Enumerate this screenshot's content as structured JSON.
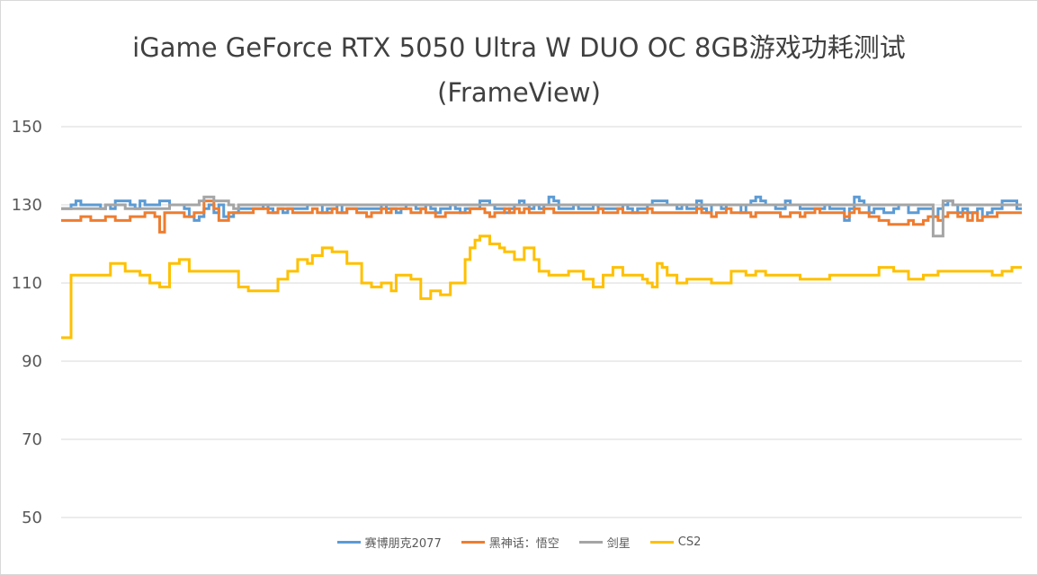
{
  "chart_data": {
    "type": "line",
    "title": "iGame GeForce RTX 5050 Ultra W DUO OC 8GB游戏功耗测试",
    "subtitle": "(FrameView)",
    "yticks": [
      50,
      70,
      90,
      110,
      130,
      150
    ],
    "ylim": [
      50,
      150
    ],
    "grid": true,
    "legend_position": "bottom",
    "series": [
      {
        "name": "赛博朋克2077",
        "color": "#5b9bd5",
        "values": [
          129,
          129,
          130,
          131,
          130,
          130,
          130,
          130,
          129,
          130,
          129,
          131,
          131,
          131,
          130,
          129,
          131,
          130,
          130,
          130,
          131,
          131,
          130,
          130,
          130,
          129,
          127,
          126,
          127,
          129,
          130,
          128,
          130,
          127,
          127,
          128,
          129,
          129,
          129,
          129,
          129,
          130,
          129,
          128,
          129,
          128,
          129,
          129,
          129,
          129,
          130,
          130,
          130,
          128,
          129,
          129,
          130,
          128,
          129,
          129,
          129,
          129,
          129,
          129,
          129,
          130,
          129,
          129,
          128,
          129,
          130,
          130,
          129,
          129,
          130,
          129,
          128,
          129,
          129,
          130,
          129,
          128,
          129,
          129,
          129,
          131,
          131,
          130,
          129,
          129,
          128,
          129,
          130,
          131,
          130,
          129,
          130,
          129,
          130,
          132,
          131,
          129,
          129,
          129,
          130,
          129,
          129,
          129,
          130,
          129,
          129,
          129,
          129,
          129,
          130,
          129,
          128,
          129,
          129,
          130,
          131,
          131,
          131,
          130,
          130,
          129,
          130,
          129,
          129,
          131,
          129,
          128,
          130,
          130,
          129,
          130,
          130,
          130,
          128,
          130,
          131,
          132,
          131,
          130,
          130,
          129,
          129,
          131,
          130,
          130,
          129,
          129,
          129,
          129,
          129,
          130,
          129,
          129,
          129,
          126,
          129,
          132,
          131,
          130,
          128,
          129,
          129,
          128,
          128,
          129,
          130,
          130,
          128,
          128,
          129,
          129,
          129,
          127,
          129,
          130,
          131,
          130,
          128,
          129,
          128,
          128,
          129,
          127,
          128,
          129,
          129,
          131,
          131,
          131,
          129
        ]
      },
      {
        "name": "黑神话：悟空",
        "color": "#ed7d31",
        "values": [
          126,
          126,
          126,
          126,
          127,
          127,
          126,
          126,
          126,
          127,
          127,
          126,
          126,
          126,
          127,
          127,
          127,
          128,
          128,
          127,
          123,
          128,
          128,
          128,
          128,
          127,
          127,
          128,
          128,
          131,
          131,
          129,
          126,
          126,
          128,
          128,
          128,
          128,
          128,
          129,
          129,
          129,
          128,
          128,
          129,
          129,
          129,
          128,
          128,
          128,
          128,
          129,
          128,
          128,
          128,
          129,
          128,
          128,
          129,
          129,
          128,
          128,
          127,
          128,
          128,
          129,
          128,
          129,
          129,
          129,
          129,
          128,
          128,
          129,
          128,
          128,
          127,
          127,
          128,
          128,
          128,
          128,
          128,
          129,
          129,
          129,
          128,
          127,
          128,
          128,
          129,
          128,
          129,
          128,
          129,
          128,
          128,
          128,
          129,
          129,
          128,
          128,
          128,
          128,
          128,
          128,
          128,
          128,
          128,
          129,
          128,
          128,
          128,
          129,
          128,
          128,
          128,
          128,
          128,
          129,
          128,
          128,
          128,
          128,
          128,
          128,
          128,
          128,
          128,
          129,
          128,
          128,
          127,
          128,
          128,
          129,
          128,
          128,
          128,
          128,
          127,
          128,
          128,
          128,
          128,
          128,
          127,
          127,
          128,
          128,
          127,
          128,
          128,
          129,
          128,
          128,
          128,
          128,
          128,
          127,
          128,
          129,
          128,
          128,
          127,
          127,
          126,
          126,
          125,
          125,
          125,
          125,
          126,
          125,
          125,
          126,
          127,
          127,
          126,
          127,
          128,
          128,
          127,
          128,
          126,
          128,
          126,
          127,
          127,
          127,
          128,
          128,
          128,
          128,
          128
        ]
      },
      {
        "name": "剑星",
        "color": "#a5a5a5",
        "values": [
          129,
          129,
          129,
          129,
          129,
          129,
          129,
          129,
          129,
          130,
          130,
          130,
          130,
          129,
          129,
          129,
          129,
          129,
          129,
          129,
          129,
          129,
          130,
          130,
          130,
          130,
          130,
          130,
          131,
          132,
          132,
          131,
          131,
          131,
          130,
          129,
          130,
          130,
          130,
          130,
          130,
          130,
          130,
          130,
          130,
          130,
          130,
          130,
          130,
          130,
          130,
          130,
          130,
          130,
          130,
          130,
          130,
          130,
          130,
          130,
          130,
          130,
          130,
          130,
          130,
          130,
          130,
          130,
          130,
          130,
          130,
          130,
          130,
          130,
          130,
          130,
          130,
          130,
          130,
          130,
          130,
          130,
          130,
          130,
          130,
          130,
          130,
          130,
          130,
          130,
          130,
          130,
          130,
          130,
          130,
          130,
          130,
          130,
          130,
          130,
          130,
          130,
          130,
          130,
          130,
          130,
          130,
          130,
          130,
          130,
          130,
          130,
          130,
          130,
          130,
          130,
          130,
          130,
          130,
          130,
          130,
          130,
          130,
          130,
          130,
          130,
          130,
          130,
          130,
          130,
          130,
          130,
          130,
          130,
          130,
          130,
          130,
          130,
          130,
          130,
          130,
          130,
          130,
          130,
          130,
          130,
          130,
          130,
          130,
          130,
          130,
          130,
          130,
          130,
          130,
          130,
          130,
          130,
          130,
          130,
          130,
          130,
          130,
          130,
          130,
          130,
          130,
          130,
          130,
          130,
          130,
          130,
          130,
          130,
          130,
          130,
          130,
          122,
          122,
          131,
          131,
          130,
          130,
          130,
          130,
          130,
          130,
          130,
          130,
          130,
          130,
          130,
          130,
          130,
          130
        ]
      },
      {
        "name": "CS2",
        "color": "#ffc000",
        "values": [
          96,
          96,
          112,
          112,
          112,
          112,
          112,
          112,
          112,
          112,
          115,
          115,
          115,
          113,
          113,
          113,
          112,
          112,
          110,
          110,
          109,
          109,
          115,
          115,
          116,
          116,
          113,
          113,
          113,
          113,
          113,
          113,
          113,
          113,
          113,
          113,
          109,
          109,
          108,
          108,
          108,
          108,
          108,
          108,
          111,
          111,
          113,
          113,
          116,
          116,
          115,
          117,
          117,
          119,
          119,
          118,
          118,
          118,
          115,
          115,
          115,
          110,
          110,
          109,
          109,
          110,
          110,
          108,
          112,
          112,
          112,
          111,
          111,
          106,
          106,
          108,
          108,
          107,
          107,
          110,
          110,
          110,
          116,
          119,
          121,
          122,
          122,
          120,
          120,
          119,
          118,
          118,
          116,
          116,
          119,
          119,
          116,
          113,
          113,
          112,
          112,
          112,
          112,
          113,
          113,
          113,
          111,
          111,
          109,
          109,
          112,
          112,
          114,
          114,
          112,
          112,
          112,
          112,
          111,
          110,
          109,
          115,
          114,
          112,
          112,
          110,
          110,
          111,
          111,
          111,
          111,
          111,
          110,
          110,
          110,
          110,
          113,
          113,
          113,
          112,
          112,
          113,
          113,
          112,
          112,
          112,
          112,
          112,
          112,
          112,
          111,
          111,
          111,
          111,
          111,
          111,
          112,
          112,
          112,
          112,
          112,
          112,
          112,
          112,
          112,
          112,
          114,
          114,
          114,
          113,
          113,
          113,
          111,
          111,
          111,
          112,
          112,
          112,
          113,
          113,
          113,
          113,
          113,
          113,
          113,
          113,
          113,
          113,
          113,
          112,
          112,
          113,
          113,
          114,
          114
        ]
      }
    ]
  }
}
